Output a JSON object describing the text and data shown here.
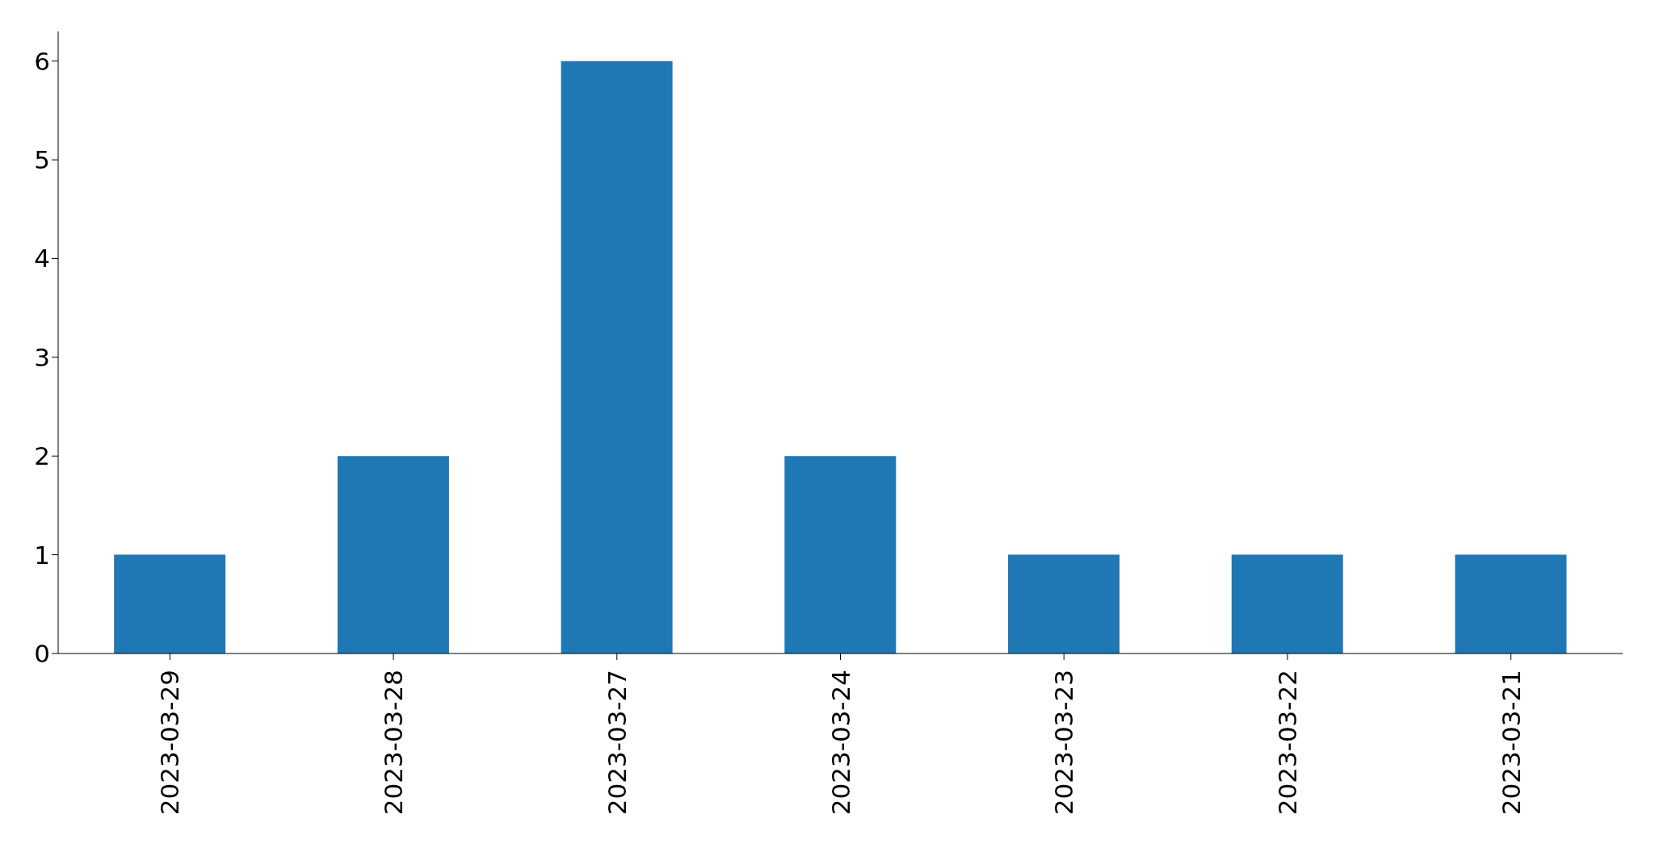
{
  "chart_data": {
    "type": "bar",
    "categories": [
      "2023-03-29",
      "2023-03-28",
      "2023-03-27",
      "2023-03-24",
      "2023-03-23",
      "2023-03-22",
      "2023-03-21"
    ],
    "values": [
      1,
      2,
      6,
      2,
      1,
      1,
      1
    ],
    "color": "#1f77b4",
    "ylim": [
      0,
      6.3
    ],
    "yticks": [
      0,
      1,
      2,
      3,
      4,
      5,
      6
    ]
  }
}
